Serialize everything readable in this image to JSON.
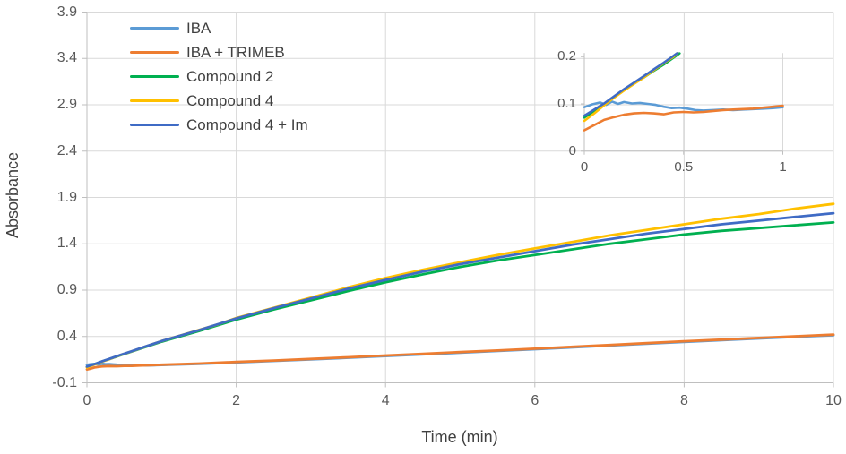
{
  "figure": {
    "background": "#FFFFFF",
    "gridline_color": "#D9D9D9",
    "axis_line_color": "#BFBFBF",
    "tick_text_color": "#595959",
    "title_text_color": "#404040"
  },
  "axis": {
    "y_title": "Absorbance",
    "x_title": "Time (min)",
    "y_ticks": [
      "-0.1",
      "0.4",
      "0.9",
      "1.4",
      "1.9",
      "2.4",
      "2.9",
      "3.4",
      "3.9"
    ],
    "x_ticks": [
      "0",
      "2",
      "4",
      "6",
      "8",
      "10"
    ]
  },
  "inset_axis": {
    "y_ticks": [
      "0",
      "0.1",
      "0.2"
    ],
    "x_ticks": [
      "0",
      "0.5",
      "1"
    ]
  },
  "legend": {
    "position": "top-left-inside",
    "labels": [
      "IBA",
      "IBA + TRIMEB",
      "Compound 2",
      "Compound 4",
      "Compound 4 + Im"
    ]
  },
  "chart_data": [
    {
      "type": "line",
      "role": "main",
      "title": "",
      "xlabel": "Time (min)",
      "ylabel": "Absorbance",
      "xlim": [
        0,
        10
      ],
      "ylim": [
        -0.1,
        3.9
      ],
      "x_tick_step": 2,
      "y_tick_step": 0.5,
      "grid": true,
      "legend_position": "top-left inside plot",
      "series": [
        {
          "name": "IBA",
          "color": "#5B9BD5",
          "points": [
            [
              0,
              0.093
            ],
            [
              0.05,
              0.1
            ],
            [
              0.1,
              0.104
            ],
            [
              0.15,
              0.098
            ],
            [
              0.2,
              0.105
            ],
            [
              0.25,
              0.1
            ],
            [
              0.3,
              0.101
            ],
            [
              0.4,
              0.095
            ],
            [
              0.5,
              0.091
            ],
            [
              0.6,
              0.086
            ],
            [
              0.7,
              0.088
            ],
            [
              0.8,
              0.087
            ],
            [
              0.9,
              0.089
            ],
            [
              1,
              0.092
            ],
            [
              1.25,
              0.098
            ],
            [
              1.5,
              0.104
            ],
            [
              2,
              0.12
            ],
            [
              3,
              0.152
            ],
            [
              4,
              0.189
            ],
            [
              5,
              0.225
            ],
            [
              6,
              0.262
            ],
            [
              7,
              0.302
            ],
            [
              8,
              0.342
            ],
            [
              9,
              0.378
            ],
            [
              10,
              0.414
            ]
          ]
        },
        {
          "name": "IBA + TRIMEB",
          "color": "#ED7D31",
          "points": [
            [
              0,
              0.044
            ],
            [
              0.05,
              0.054
            ],
            [
              0.1,
              0.065
            ],
            [
              0.15,
              0.071
            ],
            [
              0.2,
              0.077
            ],
            [
              0.3,
              0.081
            ],
            [
              0.4,
              0.079
            ],
            [
              0.5,
              0.083
            ],
            [
              0.6,
              0.083
            ],
            [
              0.7,
              0.086
            ],
            [
              0.8,
              0.088
            ],
            [
              0.9,
              0.091
            ],
            [
              1,
              0.095
            ],
            [
              1.5,
              0.108
            ],
            [
              2,
              0.125
            ],
            [
              2.5,
              0.141
            ],
            [
              3,
              0.158
            ],
            [
              3.5,
              0.175
            ],
            [
              4,
              0.195
            ],
            [
              4.5,
              0.213
            ],
            [
              5,
              0.231
            ],
            [
              5.5,
              0.249
            ],
            [
              6,
              0.268
            ],
            [
              6.5,
              0.288
            ],
            [
              7,
              0.308
            ],
            [
              7.5,
              0.328
            ],
            [
              8,
              0.348
            ],
            [
              8.5,
              0.366
            ],
            [
              9,
              0.384
            ],
            [
              9.5,
              0.402
            ],
            [
              10,
              0.42
            ]
          ]
        },
        {
          "name": "Compound 2",
          "color": "#00B050",
          "points": [
            [
              0,
              0.071
            ],
            [
              0.1,
              0.1
            ],
            [
              0.2,
              0.13
            ],
            [
              0.3,
              0.156
            ],
            [
              0.45,
              0.198
            ],
            [
              0.6,
              0.237
            ],
            [
              0.8,
              0.29
            ],
            [
              1,
              0.343
            ],
            [
              1.5,
              0.458
            ],
            [
              2,
              0.582
            ],
            [
              2.5,
              0.69
            ],
            [
              3,
              0.79
            ],
            [
              3.5,
              0.89
            ],
            [
              4,
              0.985
            ],
            [
              4.5,
              1.07
            ],
            [
              5,
              1.15
            ],
            [
              5.5,
              1.22
            ],
            [
              6,
              1.28
            ],
            [
              6.5,
              1.34
            ],
            [
              7,
              1.4
            ],
            [
              7.5,
              1.45
            ],
            [
              8,
              1.5
            ],
            [
              8.5,
              1.54
            ],
            [
              9,
              1.57
            ],
            [
              9.5,
              1.6
            ],
            [
              10,
              1.63
            ]
          ]
        },
        {
          "name": "Compound 4",
          "color": "#FFC000",
          "points": [
            [
              0,
              0.065
            ],
            [
              0.1,
              0.097
            ],
            [
              0.2,
              0.128
            ],
            [
              0.3,
              0.156
            ],
            [
              0.45,
              0.2
            ],
            [
              0.6,
              0.24
            ],
            [
              0.8,
              0.295
            ],
            [
              1,
              0.35
            ],
            [
              1.25,
              0.41
            ],
            [
              1.5,
              0.47
            ],
            [
              1.75,
              0.53
            ],
            [
              2,
              0.6
            ],
            [
              2.5,
              0.71
            ],
            [
              3,
              0.82
            ],
            [
              3.5,
              0.93
            ],
            [
              4,
              1.03
            ],
            [
              4.5,
              1.12
            ],
            [
              5,
              1.2
            ],
            [
              5.5,
              1.28
            ],
            [
              6,
              1.35
            ],
            [
              6.5,
              1.42
            ],
            [
              7,
              1.49
            ],
            [
              7.5,
              1.55
            ],
            [
              8,
              1.61
            ],
            [
              8.5,
              1.67
            ],
            [
              9,
              1.72
            ],
            [
              9.5,
              1.78
            ],
            [
              10,
              1.83
            ]
          ]
        },
        {
          "name": "Compound 4 + Im",
          "color": "#3F6BC5",
          "points": [
            [
              0,
              0.075
            ],
            [
              0.1,
              0.101
            ],
            [
              0.2,
              0.131
            ],
            [
              0.3,
              0.159
            ],
            [
              0.45,
              0.201
            ],
            [
              0.6,
              0.241
            ],
            [
              0.8,
              0.296
            ],
            [
              1,
              0.35
            ],
            [
              1.5,
              0.468
            ],
            [
              2,
              0.595
            ],
            [
              2.5,
              0.705
            ],
            [
              3,
              0.81
            ],
            [
              3.5,
              0.915
            ],
            [
              4,
              1.01
            ],
            [
              4.5,
              1.1
            ],
            [
              5,
              1.18
            ],
            [
              5.5,
              1.25
            ],
            [
              6,
              1.32
            ],
            [
              6.5,
              1.39
            ],
            [
              7,
              1.45
            ],
            [
              7.5,
              1.51
            ],
            [
              8,
              1.56
            ],
            [
              8.5,
              1.61
            ],
            [
              9,
              1.65
            ],
            [
              9.5,
              1.69
            ],
            [
              10,
              1.73
            ]
          ]
        }
      ]
    },
    {
      "type": "line",
      "role": "inset",
      "title": "",
      "xlabel": "",
      "ylabel": "",
      "xlim": [
        0,
        1
      ],
      "ylim": [
        0,
        0.2
      ],
      "x_tick_step": 0.5,
      "y_tick_step": 0.1,
      "grid": true,
      "series": [
        {
          "name": "IBA",
          "color": "#5B9BD5",
          "points": [
            [
              0,
              0.093
            ],
            [
              0.04,
              0.099
            ],
            [
              0.08,
              0.103
            ],
            [
              0.11,
              0.098
            ],
            [
              0.14,
              0.105
            ],
            [
              0.17,
              0.1
            ],
            [
              0.2,
              0.104
            ],
            [
              0.24,
              0.101
            ],
            [
              0.28,
              0.102
            ],
            [
              0.32,
              0.1
            ],
            [
              0.36,
              0.098
            ],
            [
              0.4,
              0.094
            ],
            [
              0.44,
              0.091
            ],
            [
              0.48,
              0.092
            ],
            [
              0.52,
              0.09
            ],
            [
              0.56,
              0.087
            ],
            [
              0.6,
              0.086
            ],
            [
              0.65,
              0.087
            ],
            [
              0.7,
              0.088
            ],
            [
              0.75,
              0.087
            ],
            [
              0.8,
              0.088
            ],
            [
              0.85,
              0.089
            ],
            [
              0.9,
              0.09
            ],
            [
              0.95,
              0.091
            ],
            [
              1,
              0.093
            ]
          ]
        },
        {
          "name": "IBA + TRIMEB",
          "color": "#ED7D31",
          "points": [
            [
              0,
              0.044
            ],
            [
              0.05,
              0.055
            ],
            [
              0.1,
              0.066
            ],
            [
              0.15,
              0.072
            ],
            [
              0.2,
              0.077
            ],
            [
              0.25,
              0.08
            ],
            [
              0.3,
              0.081
            ],
            [
              0.35,
              0.08
            ],
            [
              0.4,
              0.078
            ],
            [
              0.45,
              0.082
            ],
            [
              0.5,
              0.083
            ],
            [
              0.55,
              0.082
            ],
            [
              0.6,
              0.083
            ],
            [
              0.65,
              0.085
            ],
            [
              0.7,
              0.087
            ],
            [
              0.75,
              0.088
            ],
            [
              0.8,
              0.089
            ],
            [
              0.85,
              0.09
            ],
            [
              0.9,
              0.092
            ],
            [
              0.95,
              0.094
            ],
            [
              1,
              0.096
            ]
          ]
        },
        {
          "name": "Compound 2",
          "color": "#00B050",
          "points": [
            [
              0,
              0.071
            ],
            [
              0.05,
              0.085
            ],
            [
              0.1,
              0.1
            ],
            [
              0.15,
              0.115
            ],
            [
              0.2,
              0.13
            ],
            [
              0.25,
              0.143
            ],
            [
              0.3,
              0.156
            ],
            [
              0.35,
              0.17
            ],
            [
              0.4,
              0.183
            ],
            [
              0.45,
              0.198
            ],
            [
              0.48,
              0.207
            ]
          ]
        },
        {
          "name": "Compound 4",
          "color": "#FFC000",
          "points": [
            [
              0,
              0.064
            ],
            [
              0.05,
              0.08
            ],
            [
              0.1,
              0.097
            ],
            [
              0.15,
              0.113
            ],
            [
              0.2,
              0.128
            ],
            [
              0.25,
              0.142
            ],
            [
              0.3,
              0.156
            ],
            [
              0.35,
              0.171
            ],
            [
              0.4,
              0.186
            ],
            [
              0.45,
              0.2
            ],
            [
              0.47,
              0.208
            ]
          ]
        },
        {
          "name": "Compound 4 + Im",
          "color": "#3F6BC5",
          "points": [
            [
              0,
              0.075
            ],
            [
              0.05,
              0.088
            ],
            [
              0.1,
              0.101
            ],
            [
              0.15,
              0.116
            ],
            [
              0.2,
              0.131
            ],
            [
              0.25,
              0.145
            ],
            [
              0.3,
              0.159
            ],
            [
              0.35,
              0.173
            ],
            [
              0.4,
              0.187
            ],
            [
              0.44,
              0.199
            ],
            [
              0.47,
              0.208
            ]
          ]
        }
      ]
    }
  ]
}
